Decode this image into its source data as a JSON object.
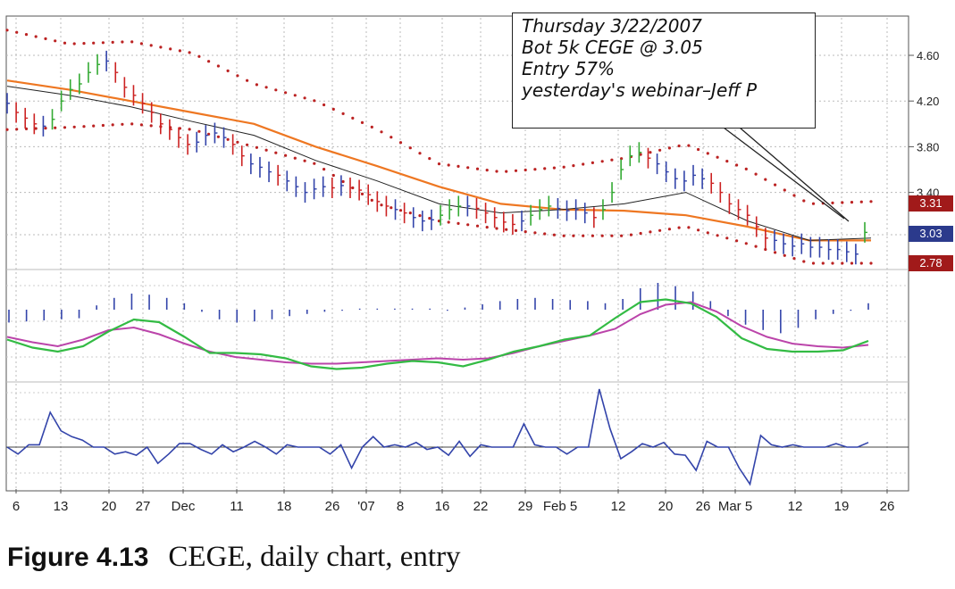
{
  "caption": {
    "figure": "Figure 4.13",
    "text": "CEGE, daily chart, entry"
  },
  "annotation": {
    "lines": [
      "Thursday 3/22/2007",
      "Bot 5k CEGE @ 3.05",
      "Entry 57%",
      "yesterday's webinar–Jeff P"
    ]
  },
  "price_tags": [
    {
      "label": "3.31",
      "color": "#a11a1a"
    },
    {
      "label": "3.03",
      "color": "#2b3a8c"
    },
    {
      "label": "2.78",
      "color": "#a11a1a"
    }
  ],
  "colors": {
    "up": "#33aa33",
    "down": "#cc2222",
    "neutral": "#3344aa",
    "ema": "#ee7722",
    "ma": "#222222",
    "band": "#bb2222",
    "macd_line": "#33bb44",
    "signal_line": "#bb44aa",
    "histogram": "#3344aa",
    "osc": "#3344aa"
  },
  "chart_data": {
    "type": "line",
    "title": "CEGE, daily chart, entry",
    "x_tick_labels": [
      "6",
      "13",
      "20",
      "27",
      "Dec",
      "11",
      "18",
      "26",
      "'07",
      "8",
      "16",
      "22",
      "29",
      "Feb 5",
      "12",
      "20",
      "26",
      "Mar 5",
      "12",
      "19",
      "26"
    ],
    "y_tick_labels": [
      "4.60",
      "4.20",
      "3.80",
      "3.40",
      "3.03"
    ],
    "ylim": [
      2.7,
      4.8
    ],
    "grid": true,
    "price_bars": {
      "close": [
        4.18,
        4.1,
        4.05,
        4.0,
        3.98,
        4.04,
        4.2,
        4.3,
        4.35,
        4.45,
        4.52,
        4.55,
        4.45,
        4.32,
        4.25,
        4.18,
        4.1,
        4.0,
        3.95,
        3.88,
        3.82,
        3.84,
        3.9,
        3.92,
        3.88,
        3.82,
        3.72,
        3.65,
        3.62,
        3.58,
        3.55,
        3.5,
        3.45,
        3.4,
        3.43,
        3.45,
        3.44,
        3.46,
        3.44,
        3.42,
        3.38,
        3.32,
        3.28,
        3.25,
        3.22,
        3.18,
        3.15,
        3.16,
        3.2,
        3.25,
        3.28,
        3.28,
        3.26,
        3.22,
        3.18,
        3.14,
        3.12,
        3.15,
        3.2,
        3.25,
        3.28,
        3.26,
        3.24,
        3.25,
        3.22,
        3.18,
        3.25,
        3.4,
        3.6,
        3.72,
        3.75,
        3.7,
        3.65,
        3.58,
        3.52,
        3.5,
        3.55,
        3.52,
        3.48,
        3.4,
        3.3,
        3.25,
        3.2,
        3.1,
        3.0,
        2.98,
        2.95,
        2.93,
        2.95,
        2.92,
        2.92,
        2.9,
        2.9,
        2.88,
        2.86,
        3.05
      ],
      "color_codes": [
        "n",
        "d",
        "d",
        "d",
        "n",
        "u",
        "u",
        "u",
        "u",
        "u",
        "u",
        "n",
        "d",
        "d",
        "d",
        "d",
        "d",
        "d",
        "d",
        "d",
        "d",
        "n",
        "n",
        "n",
        "n",
        "d",
        "d",
        "n",
        "n",
        "n",
        "d",
        "n",
        "n",
        "n",
        "n",
        "n",
        "d",
        "n",
        "d",
        "d",
        "d",
        "d",
        "d",
        "n",
        "d",
        "n",
        "n",
        "n",
        "u",
        "u",
        "u",
        "n",
        "d",
        "d",
        "d",
        "d",
        "d",
        "n",
        "u",
        "u",
        "u",
        "n",
        "n",
        "n",
        "n",
        "d",
        "u",
        "u",
        "u",
        "u",
        "u",
        "d",
        "n",
        "n",
        "n",
        "n",
        "n",
        "n",
        "d",
        "d",
        "d",
        "d",
        "d",
        "d",
        "d",
        "n",
        "n",
        "n",
        "n",
        "n",
        "n",
        "n",
        "n",
        "n",
        "n",
        "u"
      ]
    },
    "series": [
      {
        "values": [
          4.38,
          4.3,
          4.2,
          4.1,
          4.0,
          3.8,
          3.63,
          3.45,
          3.3,
          3.25,
          3.24,
          3.2,
          3.1,
          2.98,
          2.98
        ]
      },
      {
        "values": [
          4.33,
          4.25,
          4.15,
          4.02,
          3.9,
          3.68,
          3.5,
          3.3,
          3.22,
          3.25,
          3.3,
          3.4,
          3.15,
          2.98,
          3.0
        ]
      }
    ],
    "upper_band": [
      4.82,
      4.7,
      4.72,
      4.62,
      4.35,
      4.2,
      3.95,
      3.65,
      3.58,
      3.62,
      3.7,
      3.82,
      3.6,
      3.3,
      3.32
    ],
    "lower_band": [
      3.95,
      3.97,
      4.0,
      3.95,
      3.8,
      3.65,
      3.3,
      3.15,
      3.08,
      3.02,
      3.02,
      3.1,
      2.95,
      2.78,
      2.78
    ],
    "macd": {
      "histogram": [
        -0.6,
        -0.55,
        -0.5,
        -0.45,
        -0.4,
        0.2,
        0.55,
        0.75,
        0.7,
        0.55,
        0.3,
        -0.1,
        -0.45,
        -0.6,
        -0.55,
        -0.45,
        -0.3,
        -0.2,
        -0.1,
        -0.05,
        0.05,
        0.05,
        0.05,
        0.05,
        0.05,
        -0.05,
        0.1,
        0.25,
        0.4,
        0.5,
        0.55,
        0.5,
        0.45,
        0.4,
        0.3,
        0.5,
        1.0,
        1.25,
        1.1,
        0.85,
        0.4,
        -0.3,
        -0.7,
        -0.95,
        -1.1,
        -0.85,
        -0.45,
        -0.2,
        -0.05,
        0.3
      ],
      "macd_line": [
        0.15,
        -0.15,
        -0.3,
        -0.1,
        0.45,
        0.9,
        0.8,
        0.25,
        -0.35,
        -0.35,
        -0.4,
        -0.55,
        -0.85,
        -0.95,
        -0.9,
        -0.75,
        -0.65,
        -0.7,
        -0.85,
        -0.6,
        -0.3,
        -0.1,
        0.15,
        0.3,
        0.95,
        1.55,
        1.65,
        1.5,
        1.0,
        0.2,
        -0.2,
        -0.3,
        -0.3,
        -0.25,
        0.1
      ],
      "signal_line": [
        0.25,
        0.05,
        -0.1,
        0.15,
        0.5,
        0.6,
        0.35,
        0.0,
        -0.3,
        -0.5,
        -0.6,
        -0.7,
        -0.75,
        -0.75,
        -0.7,
        -0.65,
        -0.6,
        -0.55,
        -0.6,
        -0.55,
        -0.35,
        -0.1,
        0.1,
        0.3,
        0.55,
        1.1,
        1.45,
        1.55,
        1.2,
        0.65,
        0.25,
        0.0,
        -0.1,
        -0.15,
        -0.05
      ]
    },
    "oscillator": [
      0.0,
      -0.3,
      0.1,
      0.1,
      1.5,
      0.7,
      0.45,
      0.3,
      0.0,
      0.0,
      -0.3,
      -0.2,
      -0.35,
      0.0,
      -0.7,
      -0.3,
      0.15,
      0.15,
      -0.1,
      -0.3,
      0.1,
      -0.2,
      0.0,
      0.25,
      0.0,
      -0.3,
      0.1,
      0.0,
      0.0,
      0.0,
      -0.3,
      0.1,
      -0.9,
      0.0,
      0.45,
      0.0,
      0.1,
      0.0,
      0.2,
      -0.1,
      0.0,
      -0.35,
      0.25,
      -0.4,
      0.1,
      0.0,
      0.0,
      0.0,
      1.0,
      0.1,
      0.0,
      0.0,
      -0.3,
      0.0,
      0.0,
      2.5,
      0.8,
      -0.5,
      -0.2,
      0.15,
      0.0,
      0.2,
      -0.3,
      -0.35,
      -1.0,
      0.25,
      0.0,
      0.0,
      -0.9,
      -1.6,
      0.5,
      0.1,
      0.0,
      0.1,
      0.0,
      0.0,
      0.0,
      0.15,
      0.0,
      0.0,
      0.2
    ]
  }
}
